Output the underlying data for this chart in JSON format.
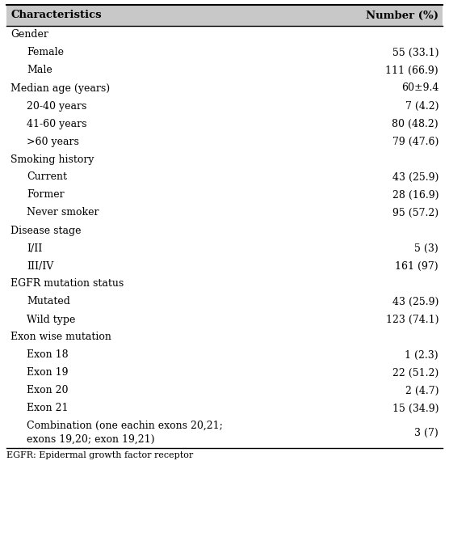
{
  "header": [
    "Characteristics",
    "Number (%)"
  ],
  "rows": [
    {
      "label": "Gender",
      "value": "",
      "indent": 0,
      "bold": false,
      "section": true
    },
    {
      "label": "Female",
      "value": "55 (33.1)",
      "indent": 1,
      "bold": false,
      "section": false
    },
    {
      "label": "Male",
      "value": "111 (66.9)",
      "indent": 1,
      "bold": false,
      "section": false
    },
    {
      "label": "Median age (years)",
      "value": "60±9.4",
      "indent": 0,
      "bold": false,
      "section": true
    },
    {
      "label": "20-40 years",
      "value": "7 (4.2)",
      "indent": 1,
      "bold": false,
      "section": false
    },
    {
      "label": "41-60 years",
      "value": "80 (48.2)",
      "indent": 1,
      "bold": false,
      "section": false
    },
    {
      "label": ">60 years",
      "value": "79 (47.6)",
      "indent": 1,
      "bold": false,
      "section": false
    },
    {
      "label": "Smoking history",
      "value": "",
      "indent": 0,
      "bold": false,
      "section": true
    },
    {
      "label": "Current",
      "value": "43 (25.9)",
      "indent": 1,
      "bold": false,
      "section": false
    },
    {
      "label": "Former",
      "value": "28 (16.9)",
      "indent": 1,
      "bold": false,
      "section": false
    },
    {
      "label": "Never smoker",
      "value": "95 (57.2)",
      "indent": 1,
      "bold": false,
      "section": false
    },
    {
      "label": "Disease stage",
      "value": "",
      "indent": 0,
      "bold": false,
      "section": true
    },
    {
      "label": "I/II",
      "value": "5 (3)",
      "indent": 1,
      "bold": false,
      "section": false
    },
    {
      "label": "III/IV",
      "value": "161 (97)",
      "indent": 1,
      "bold": false,
      "section": false
    },
    {
      "label": "EGFR mutation status",
      "value": "",
      "indent": 0,
      "bold": false,
      "section": true
    },
    {
      "label": "Mutated",
      "value": "43 (25.9)",
      "indent": 1,
      "bold": false,
      "section": false
    },
    {
      "label": "Wild type",
      "value": "123 (74.1)",
      "indent": 1,
      "bold": false,
      "section": false
    },
    {
      "label": "Exon wise mutation",
      "value": "",
      "indent": 0,
      "bold": false,
      "section": true
    },
    {
      "label": "Exon 18",
      "value": "1 (2.3)",
      "indent": 1,
      "bold": false,
      "section": false
    },
    {
      "label": "Exon 19",
      "value": "22 (51.2)",
      "indent": 1,
      "bold": false,
      "section": false
    },
    {
      "label": "Exon 20",
      "value": "2 (4.7)",
      "indent": 1,
      "bold": false,
      "section": false
    },
    {
      "label": "Exon 21",
      "value": "15 (34.9)",
      "indent": 1,
      "bold": false,
      "section": false
    },
    {
      "label": "Combination (one eachin exons 20,21;\nexons 19,20; exon 19,21)",
      "value": "3 (7)",
      "indent": 1,
      "bold": false,
      "section": false,
      "multiline": true
    }
  ],
  "footnote": "EGFR: Epidermal growth factor receptor",
  "bg_color": "#ffffff",
  "header_bg": "#c8c8c8",
  "line_color": "#000000",
  "text_color": "#000000",
  "header_fontsize": 9.5,
  "body_fontsize": 9.0,
  "footnote_fontsize": 8.0,
  "indent_size": 20
}
